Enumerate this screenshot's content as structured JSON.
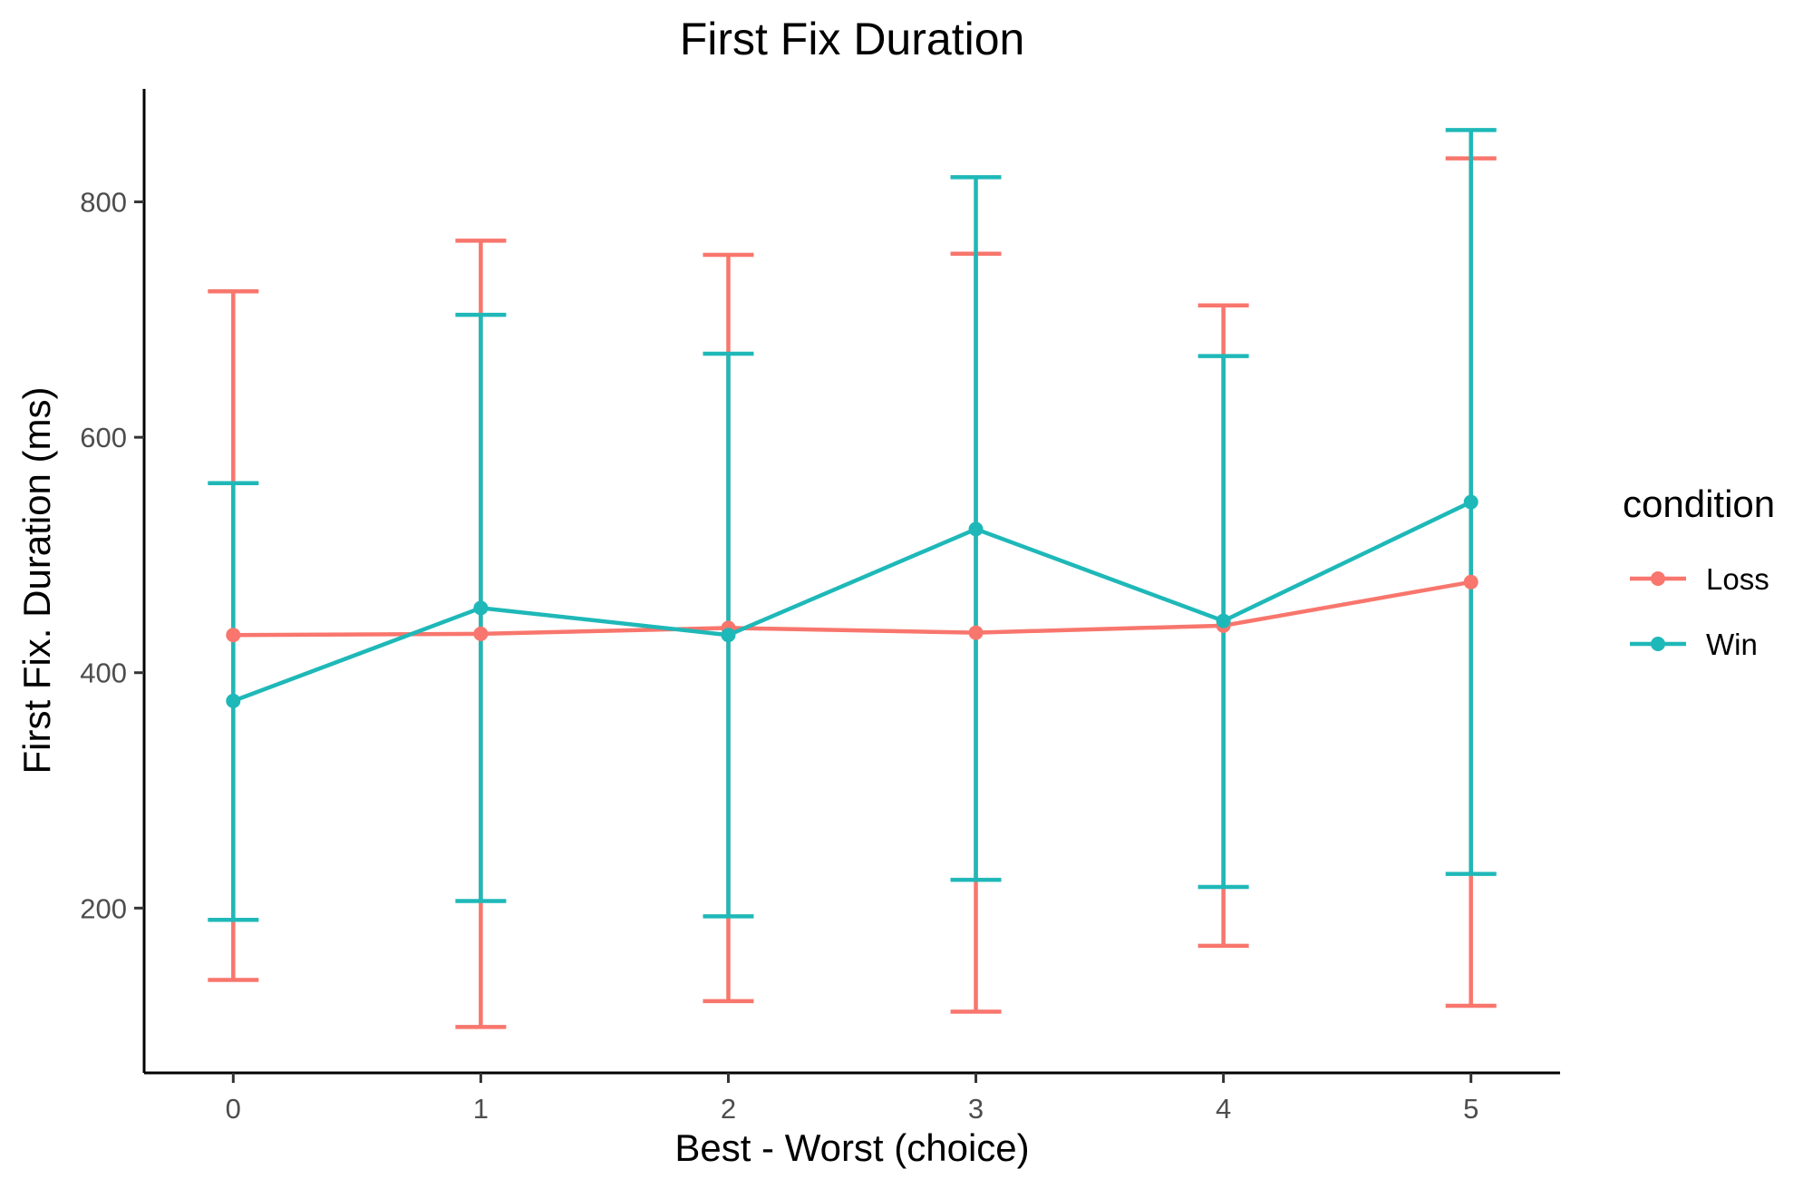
{
  "chart_data": {
    "type": "line",
    "title": "First Fix Duration",
    "xlabel": "Best - Worst (choice)",
    "ylabel": "First Fix. Duration (ms)",
    "x": [
      0,
      1,
      2,
      3,
      4,
      5
    ],
    "x_tick_labels": [
      "0",
      "1",
      "2",
      "3",
      "4",
      "5"
    ],
    "xlim": [
      -0.36,
      5.36
    ],
    "ylim": [
      60,
      896
    ],
    "y_ticks": [
      200,
      400,
      600,
      800
    ],
    "y_tick_labels": [
      "200",
      "400",
      "600",
      "800"
    ],
    "grid": false,
    "error_bars": true,
    "legend": {
      "title": "condition",
      "placement": "right"
    },
    "series": [
      {
        "name": "Loss",
        "color": "#f8766d",
        "values": [
          432,
          433,
          438,
          434,
          440,
          477
        ],
        "error_low": [
          139,
          99,
          121,
          112,
          168,
          117
        ],
        "error_high": [
          724,
          767,
          755,
          756,
          712,
          837
        ]
      },
      {
        "name": "Win",
        "color": "#1fb8b8",
        "values": [
          376,
          455,
          432,
          522,
          444,
          545
        ],
        "error_low": [
          190,
          206,
          193,
          224,
          218,
          229
        ],
        "error_high": [
          561,
          704,
          671,
          821,
          669,
          861
        ]
      }
    ]
  }
}
